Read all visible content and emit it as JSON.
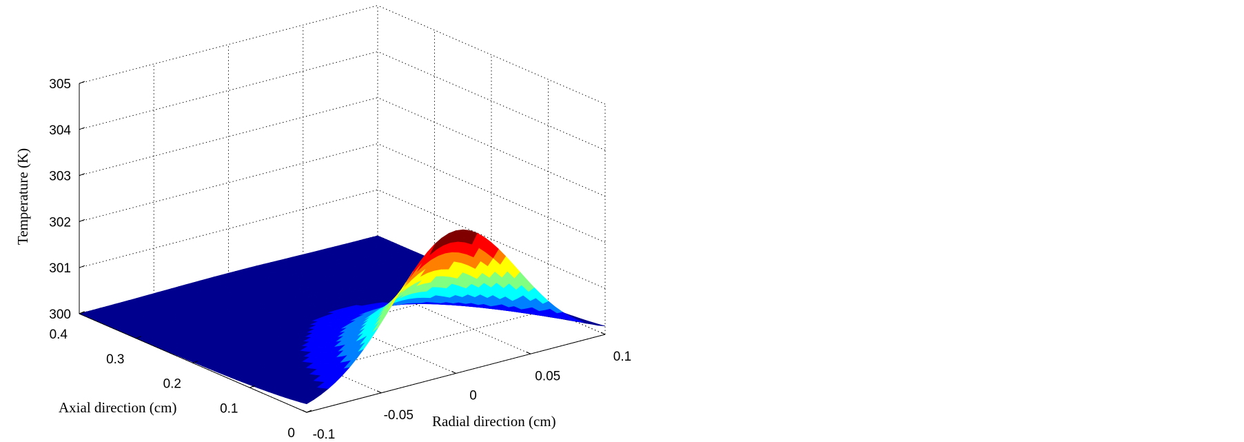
{
  "chart_data": {
    "type": "surface",
    "title": "",
    "xlabel": "Radial direction (cm)",
    "ylabel": "Axial direction (cm)",
    "zlabel": "Temperature (K)",
    "xlim": [
      -0.1,
      0.1
    ],
    "ylim": [
      0,
      0.4
    ],
    "zlim": [
      300,
      305
    ],
    "x_ticks": [
      "-0.1",
      "-0.05",
      "0",
      "0.05",
      "0.1"
    ],
    "y_ticks": [
      "0",
      "0.1",
      "0.2",
      "0.3",
      "0.4"
    ],
    "z_ticks": [
      "300",
      "301",
      "302",
      "303",
      "304",
      "305"
    ],
    "grid": true,
    "colormap": "jet",
    "surface": {
      "baseline_K": 300,
      "peak_K": 303.1,
      "peak_location": {
        "radial_cm": 0,
        "axial_cm": 0
      },
      "radial_width_cm": 0.042,
      "axial_decay_cm": 0.09
    },
    "colors": {
      "jet": [
        "#00008f",
        "#0000ff",
        "#0080ff",
        "#00ffff",
        "#80ff80",
        "#ffff00",
        "#ff8000",
        "#ff0000",
        "#800000"
      ]
    }
  }
}
